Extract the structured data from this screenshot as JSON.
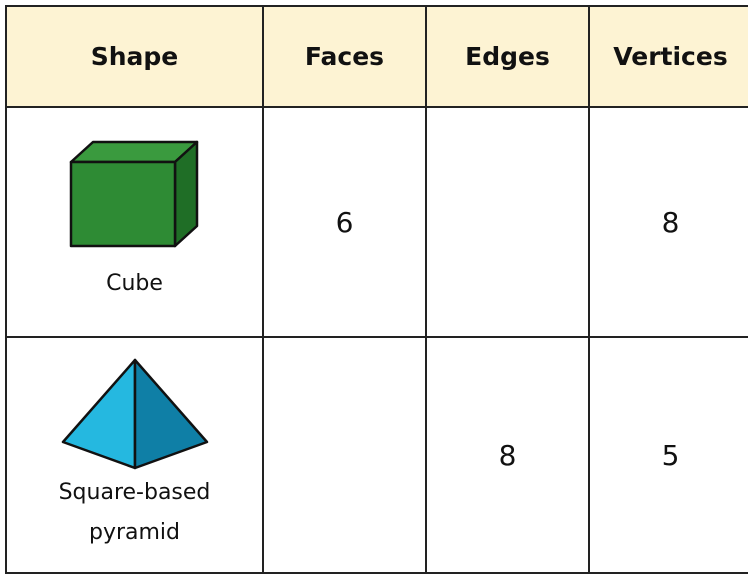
{
  "table": {
    "columns": [
      "Shape",
      "Faces",
      "Edges",
      "Vertices"
    ],
    "rows": [
      [
        "Cube",
        "6",
        null,
        "8"
      ],
      [
        "Square-based pyramid",
        null,
        "8",
        "5"
      ]
    ]
  }
}
